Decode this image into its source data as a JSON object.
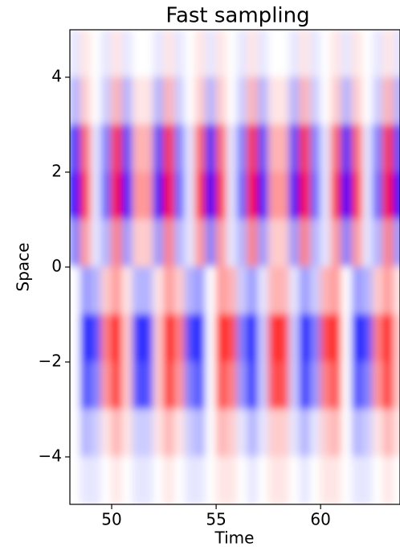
{
  "chart_data": {
    "type": "heatmap",
    "title": "Fast sampling",
    "xlabel": "Time",
    "ylabel": "Space",
    "colormap": "bwr",
    "zlim": [
      -1,
      1
    ],
    "xlim": [
      48,
      63.8
    ],
    "ylim": [
      -5,
      5
    ],
    "xticks": [
      50,
      55,
      60
    ],
    "yticks": [
      4,
      2,
      0,
      {
        "value": -2,
        "label": "−2"
      },
      {
        "value": -4,
        "label": "−4"
      }
    ],
    "x_edges": [
      48,
      48.5,
      49,
      49.5,
      50,
      50.5,
      51,
      51.5,
      52,
      52.5,
      53,
      53.5,
      54,
      54.5,
      55,
      55.5,
      56,
      56.5,
      57,
      57.5,
      58,
      58.5,
      59,
      59.5,
      60,
      60.5,
      61,
      61.5,
      62,
      62.5,
      63,
      63.5,
      64
    ],
    "y_edges": [
      5,
      4,
      3,
      2,
      1,
      0,
      -1,
      -2,
      -3,
      -4,
      -5
    ],
    "z": [
      [
        -0.1,
        0.1,
        0,
        -0.1,
        0.1,
        -0.1,
        0,
        0,
        -0.1,
        0.1,
        -0.1,
        0,
        0.1,
        -0.1,
        0.1,
        0,
        -0.1,
        0.1,
        -0.1,
        0,
        0,
        -0.1,
        0.1,
        -0.1,
        0,
        0.1,
        -0.1,
        0.1,
        0,
        -0.1,
        0.1,
        -0.1
      ],
      [
        -0.3,
        0.2,
        0,
        -0.2,
        0.3,
        -0.3,
        0.1,
        0.1,
        -0.3,
        0.3,
        -0.2,
        0,
        0.2,
        -0.3,
        0.2,
        0,
        -0.2,
        0.3,
        -0.3,
        0.1,
        0.1,
        -0.3,
        0.3,
        -0.2,
        0,
        0.2,
        -0.3,
        0.2,
        0,
        -0.2,
        0.3,
        -0.3
      ],
      [
        -0.8,
        0.6,
        -0.1,
        -0.5,
        0.8,
        -0.7,
        0.3,
        0.3,
        -0.7,
        0.8,
        -0.5,
        -0.1,
        0.6,
        -0.8,
        0.6,
        -0.1,
        -0.5,
        0.8,
        -0.7,
        0.3,
        0.3,
        -0.7,
        0.8,
        -0.5,
        -0.1,
        0.6,
        -0.8,
        0.6,
        -0.1,
        -0.5,
        0.8,
        -0.7
      ],
      [
        -1,
        0.8,
        -0.1,
        -0.6,
        1,
        -0.9,
        0.4,
        0.4,
        -0.9,
        1,
        -0.6,
        -0.1,
        0.8,
        -1,
        0.8,
        -0.1,
        -0.6,
        1,
        -0.9,
        0.4,
        0.4,
        -0.9,
        1,
        -0.6,
        -0.1,
        0.8,
        -1,
        0.8,
        -0.1,
        -0.6,
        1,
        -0.9
      ],
      [
        -0.5,
        0.4,
        -0.1,
        -0.3,
        0.5,
        -0.4,
        0.2,
        0.2,
        -0.4,
        0.5,
        -0.3,
        -0.1,
        0.4,
        -0.5,
        0.4,
        -0.1,
        -0.3,
        0.5,
        -0.4,
        0.2,
        0.2,
        -0.4,
        0.5,
        -0.3,
        -0.1,
        0.4,
        -0.5,
        0.4,
        -0.1,
        -0.3,
        0.5,
        -0.4
      ],
      [
        0,
        -0.4,
        -0.3,
        0.2,
        0.4,
        0.1,
        -0.3,
        -0.3,
        0.1,
        0.4,
        0.2,
        -0.3,
        -0.4,
        0,
        0.4,
        0.3,
        -0.2,
        -0.4,
        -0.1,
        0.3,
        0.3,
        -0.1,
        -0.4,
        -0.2,
        0.3,
        0.4,
        0,
        -0.4,
        -0.3,
        0.2,
        0.4,
        0.1
      ],
      [
        0,
        -0.9,
        -0.7,
        0.5,
        1,
        0.2,
        -0.8,
        -0.8,
        0.2,
        1,
        0.5,
        -0.7,
        -0.9,
        0,
        0.9,
        0.7,
        -0.5,
        -1,
        -0.2,
        0.8,
        0.8,
        -0.2,
        -1,
        -0.5,
        0.7,
        0.9,
        0,
        -0.9,
        -0.7,
        0.5,
        1,
        0.2
      ],
      [
        0,
        -0.7,
        -0.5,
        0.4,
        0.8,
        0.2,
        -0.7,
        -0.7,
        0.2,
        0.8,
        0.4,
        -0.5,
        -0.7,
        0,
        0.7,
        0.5,
        -0.4,
        -0.8,
        -0.2,
        0.7,
        0.7,
        -0.2,
        -0.8,
        -0.4,
        0.5,
        0.7,
        0,
        -0.7,
        -0.5,
        0.4,
        0.8,
        0.2
      ],
      [
        0,
        -0.3,
        -0.2,
        0.1,
        0.3,
        0.1,
        -0.2,
        -0.2,
        0.1,
        0.3,
        0.1,
        -0.2,
        -0.3,
        0,
        0.3,
        0.2,
        -0.1,
        -0.3,
        -0.1,
        0.2,
        0.2,
        -0.1,
        -0.3,
        -0.1,
        0.2,
        0.3,
        0,
        -0.3,
        -0.2,
        0.1,
        0.3,
        0.1
      ],
      [
        0,
        -0.1,
        -0.1,
        0,
        0.1,
        0,
        -0.1,
        -0.1,
        0,
        0.1,
        0,
        -0.1,
        -0.1,
        0,
        0.1,
        0.1,
        0,
        -0.1,
        0,
        0.1,
        0.1,
        0,
        -0.1,
        0,
        0.1,
        0.1,
        0,
        -0.1,
        -0.1,
        0,
        0.1,
        0
      ]
    ]
  }
}
